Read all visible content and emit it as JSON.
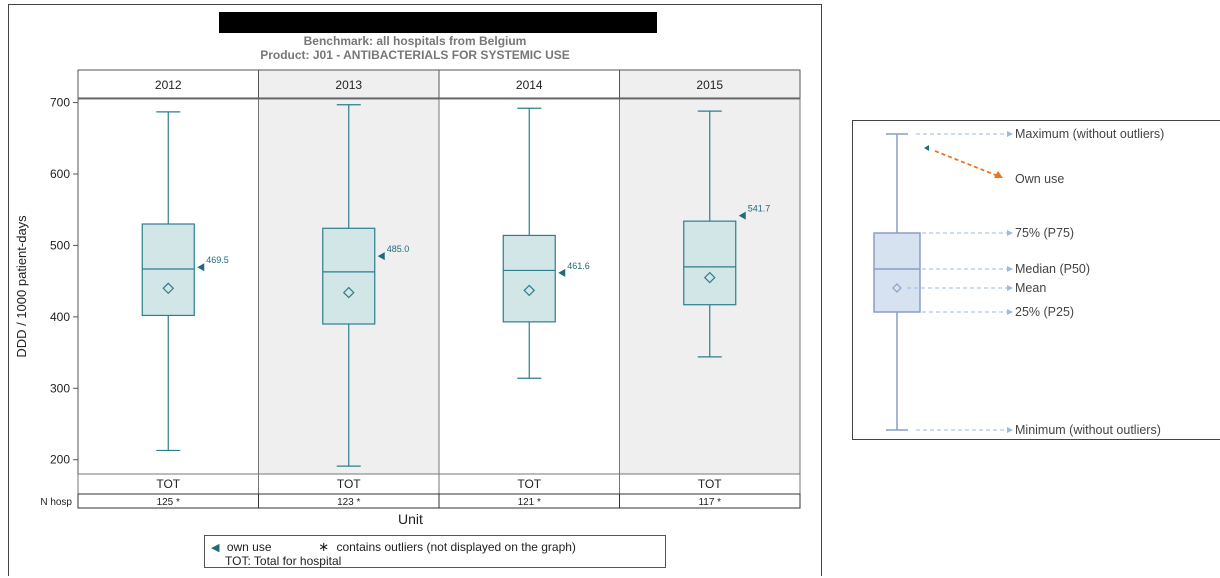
{
  "header": {
    "benchmark": "Benchmark: all hospitals from Belgium",
    "product": "Product: J01 - ANTIBACTERIALS FOR SYSTEMIC USE"
  },
  "chart_data": {
    "type": "box",
    "ylabel": "DDD / 1000 patient-days",
    "xlabel": "Unit",
    "ylim": [
      180,
      705
    ],
    "yticks": [
      200,
      300,
      400,
      500,
      600,
      700
    ],
    "panels": [
      {
        "year": "2012",
        "unit": "TOT",
        "n_hosp": "125 *",
        "min": 213,
        "q1": 402,
        "median": 467,
        "q3": 530,
        "max": 687,
        "mean": 440,
        "own_use": 469.5,
        "own_use_label": "469.5"
      },
      {
        "year": "2013",
        "unit": "TOT",
        "n_hosp": "123 *",
        "min": 191,
        "q1": 390,
        "median": 463,
        "q3": 524,
        "max": 697,
        "mean": 434,
        "own_use": 485.0,
        "own_use_label": "485.0"
      },
      {
        "year": "2014",
        "unit": "TOT",
        "n_hosp": "121 *",
        "min": 314,
        "q1": 393,
        "median": 465,
        "q3": 514,
        "max": 692,
        "mean": 437,
        "own_use": 461.6,
        "own_use_label": "461.6"
      },
      {
        "year": "2015",
        "unit": "TOT",
        "n_hosp": "117 *",
        "min": 344,
        "q1": 417,
        "median": 470,
        "q3": 534,
        "max": 688,
        "mean": 455,
        "own_use": 541.7,
        "own_use_label": "541.7"
      }
    ],
    "n_hosp_label": "N hosp",
    "colors": {
      "box_fill": "#d2e5e7",
      "box_stroke": "#2b7f8c",
      "own_use": "#1e6b7a",
      "panel_alt": "#efefef"
    }
  },
  "legend": {
    "own_use": "own use",
    "outliers": "contains outliers (not displayed on the graph)",
    "tot": "TOT: Total for hospital"
  },
  "explanation": {
    "maximum": "Maximum (without outliers)",
    "own_use": "Own use",
    "p75": "75% (P75)",
    "median": "Median (P50)",
    "mean": "Mean",
    "p25": "25% (P25)",
    "minimum": "Minimum (without outliers)",
    "colors": {
      "box_fill": "#d6e2f0",
      "box_stroke": "#8a9dc9",
      "arrow": "#9fb8dc",
      "own_use_arrow": "#e8761f",
      "own_use_marker": "#1e6b7a"
    }
  }
}
